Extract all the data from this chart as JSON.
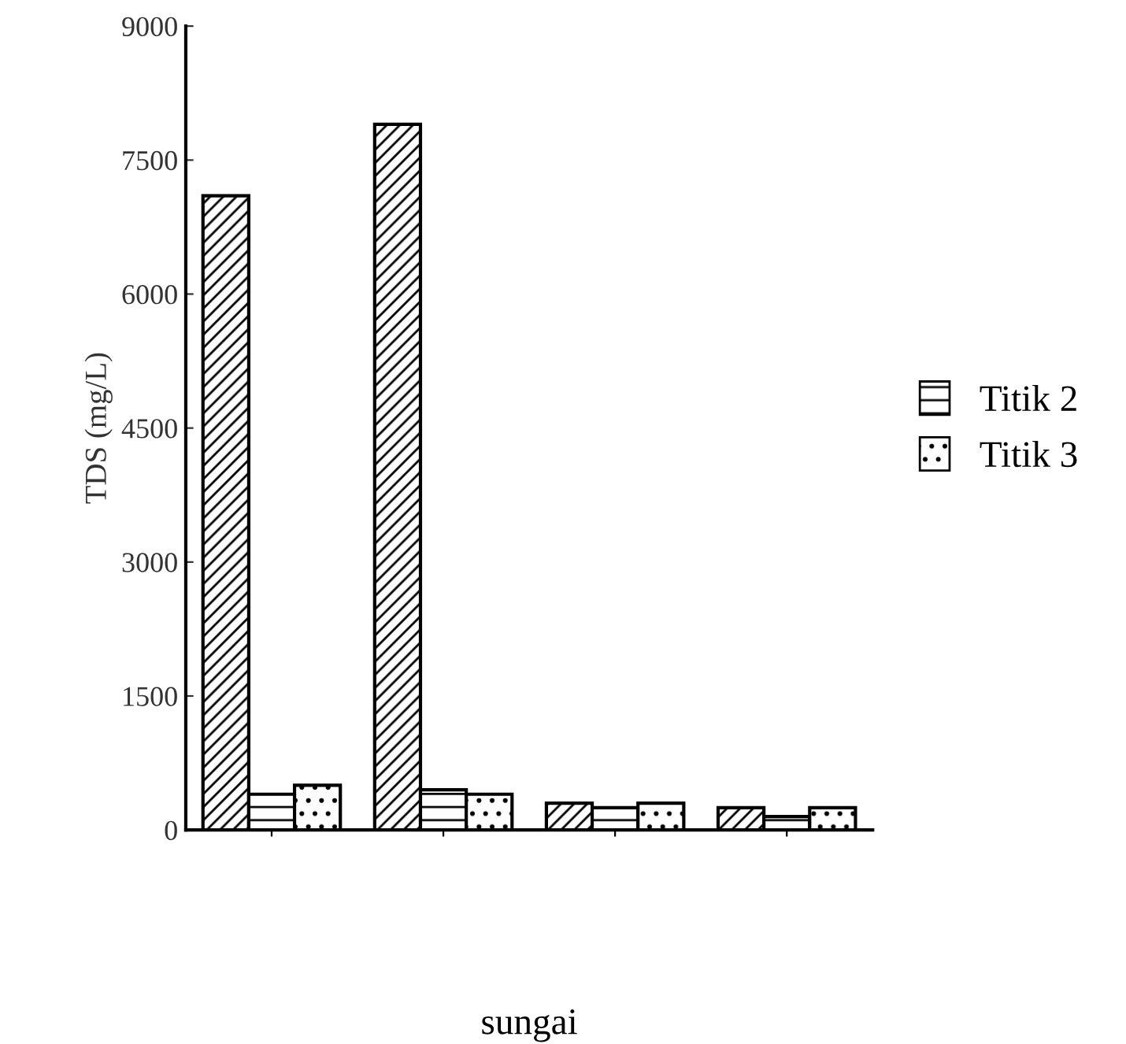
{
  "chart_data": {
    "type": "bar",
    "xlabel": "sungai",
    "ylabel": "TDS (mg/L)",
    "categories": [
      null,
      null,
      null,
      null
    ],
    "series": [
      {
        "color": "#000000",
        "values": [
          7100,
          7900,
          300,
          250
        ]
      },
      {
        "name": "Titik 2",
        "color": "#000000",
        "values": [
          400,
          450,
          250,
          150
        ]
      },
      {
        "name": "Titik 3",
        "color": "#000000",
        "values": [
          500,
          400,
          300,
          250
        ]
      }
    ],
    "ylim": [
      0,
      9000
    ],
    "yticks": [
      0,
      1500,
      3000,
      4500,
      6000,
      7500,
      9000
    ],
    "grid": false,
    "legend": "right"
  }
}
